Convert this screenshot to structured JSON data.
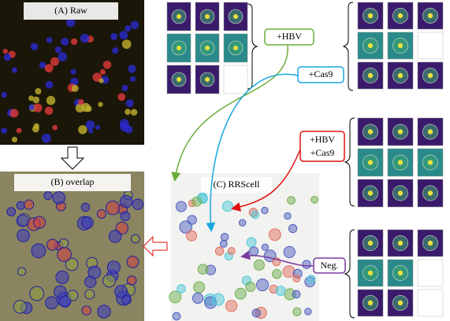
{
  "panels": {
    "raw": "(A) Raw",
    "overlap": "(B) overlap",
    "rrscell": "(C) RRScell"
  },
  "labels": {
    "hbv": "+HBV",
    "cas9": "+Cas9",
    "hbv_cas9": [
      "+HBV",
      "+Cas9"
    ],
    "neg": "Neg."
  }
}
